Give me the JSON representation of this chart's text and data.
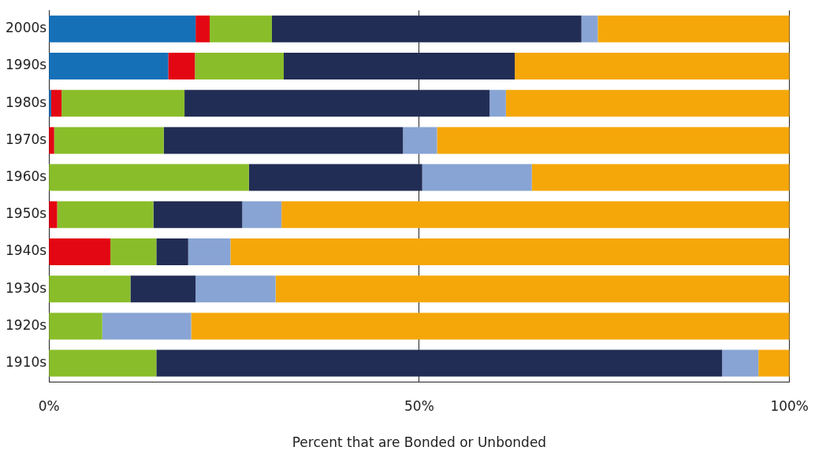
{
  "chart_data": {
    "type": "bar",
    "orientation": "horizontal",
    "stacked": true,
    "xlabel": "Percent that are Bonded or Unbonded",
    "categories": [
      "2000s",
      "1990s",
      "1980s",
      "1970s",
      "1960s",
      "1950s",
      "1940s",
      "1930s",
      "1920s",
      "1910s"
    ],
    "series": [
      {
        "color": "#1570b8",
        "values": [
          19.8,
          16.1,
          0.3,
          0,
          0,
          0,
          0,
          0,
          0,
          0
        ]
      },
      {
        "color": "#e30613",
        "values": [
          1.9,
          3.6,
          1.4,
          0.7,
          0,
          1.1,
          8.3,
          0,
          0,
          0
        ]
      },
      {
        "color": "#8abd2a",
        "values": [
          8.4,
          12.0,
          16.6,
          14.8,
          27.0,
          13.0,
          6.2,
          11.0,
          7.2,
          14.5
        ]
      },
      {
        "color": "#222d55",
        "values": [
          41.8,
          31.2,
          41.2,
          32.3,
          23.4,
          12.0,
          4.3,
          8.8,
          0,
          76.4
        ]
      },
      {
        "color": "#88a4d4",
        "values": [
          2.2,
          0,
          2.2,
          4.6,
          14.8,
          5.3,
          5.7,
          10.8,
          12.0,
          4.9
        ]
      },
      {
        "color": "#f5a70a",
        "values": [
          25.9,
          37.1,
          38.3,
          47.6,
          34.8,
          68.6,
          75.5,
          69.4,
          80.8,
          4.2
        ]
      }
    ],
    "xlim": [
      0,
      100
    ],
    "xticks": [
      {
        "value": 0,
        "label": "0%"
      },
      {
        "value": 50,
        "label": "50%"
      },
      {
        "value": 100,
        "label": "100%"
      }
    ],
    "grid": "x",
    "legend": false
  }
}
